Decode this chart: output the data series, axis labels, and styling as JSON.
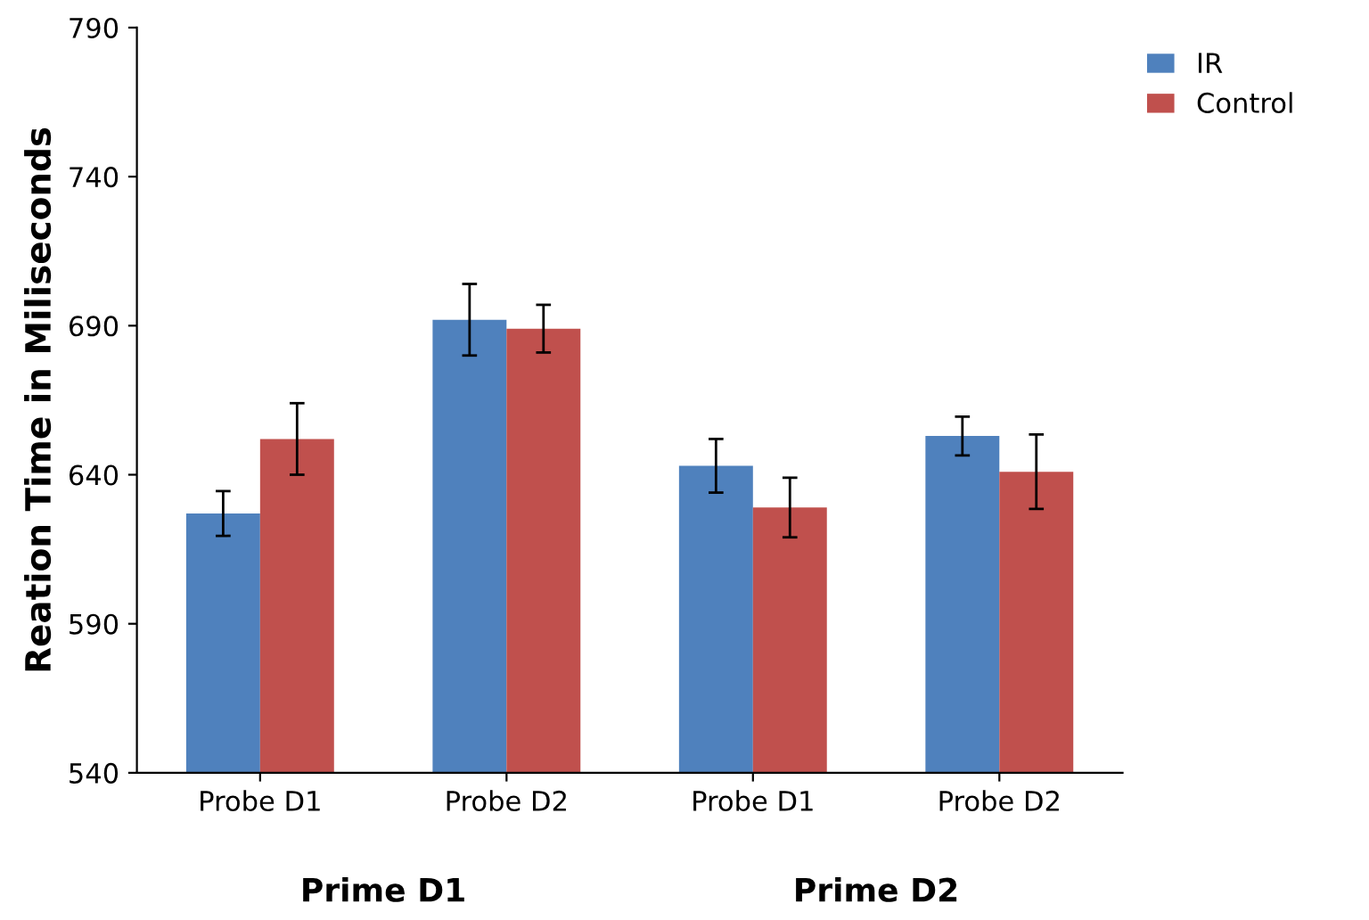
{
  "chart_data": {
    "type": "bar",
    "ylabel": "Reation Time in Miliseconds",
    "categories": [
      "Probe D1",
      "Probe D2",
      "Probe D1",
      "Probe D2"
    ],
    "series": [
      {
        "name": "IR",
        "color": "#4f81bd",
        "values": [
          627,
          692,
          643,
          653
        ],
        "errors": [
          7.5,
          12,
          9,
          6.5
        ]
      },
      {
        "name": "Control",
        "color": "#c0504d",
        "values": [
          652,
          689,
          629,
          641
        ],
        "errors": [
          12,
          8,
          10,
          12.5
        ]
      }
    ],
    "ylim": [
      540,
      790
    ],
    "yticks": [
      540,
      590,
      640,
      690,
      740,
      790
    ],
    "annotations": [
      "Prime D1",
      "Prime D2"
    ],
    "legend": "top right",
    "grid": false
  }
}
